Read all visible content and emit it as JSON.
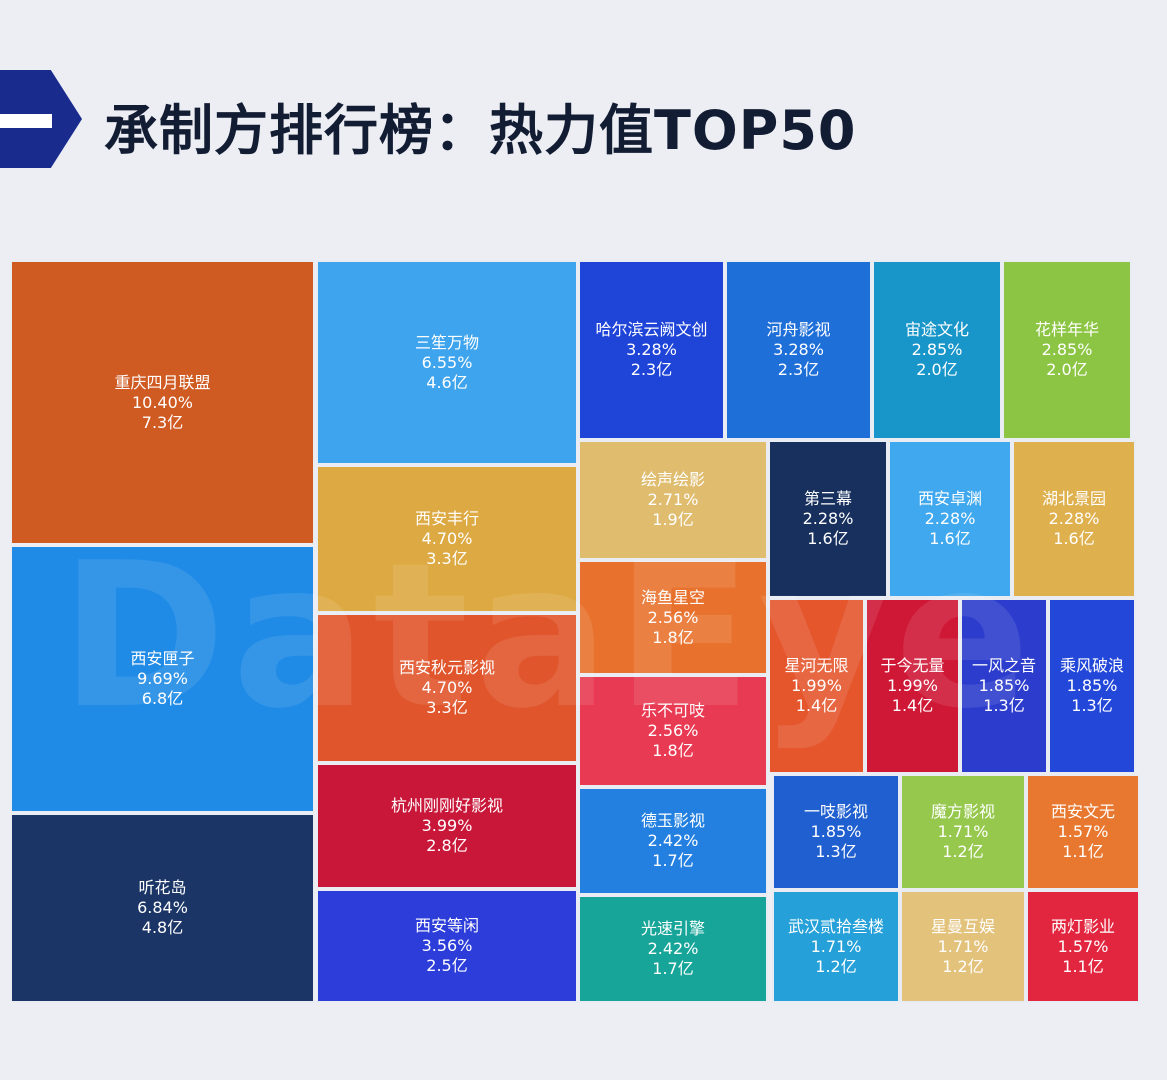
{
  "header": {
    "title": "承制方排行榜：热力值TOP50"
  },
  "watermark": "DataEye",
  "chart_data": {
    "type": "treemap",
    "title": "承制方排行榜：热力值TOP50",
    "items": [
      {
        "name": "重庆四月联盟",
        "share": "10.40%",
        "value": "7.3亿",
        "v": 7.3,
        "color": "#cf5a22"
      },
      {
        "name": "西安匣子",
        "share": "9.69%",
        "value": "6.8亿",
        "v": 6.8,
        "color": "#1f8be6"
      },
      {
        "name": "听花岛",
        "share": "6.84%",
        "value": "4.8亿",
        "v": 4.8,
        "color": "#1a3566"
      },
      {
        "name": "三笙万物",
        "share": "6.55%",
        "value": "4.6亿",
        "v": 4.6,
        "color": "#3fa4ee"
      },
      {
        "name": "西安丰行",
        "share": "4.70%",
        "value": "3.3亿",
        "v": 3.3,
        "color": "#dda942"
      },
      {
        "name": "西安秋元影视",
        "share": "4.70%",
        "value": "3.3亿",
        "v": 3.3,
        "color": "#e0552b"
      },
      {
        "name": "杭州刚刚好影视",
        "share": "3.99%",
        "value": "2.8亿",
        "v": 2.8,
        "color": "#c9173a"
      },
      {
        "name": "西安等闲",
        "share": "3.56%",
        "value": "2.5亿",
        "v": 2.5,
        "color": "#2c3dd9"
      },
      {
        "name": "哈尔滨云阙文创",
        "share": "3.28%",
        "value": "2.3亿",
        "v": 2.3,
        "color": "#1f44d8"
      },
      {
        "name": "河舟影视",
        "share": "3.28%",
        "value": "2.3亿",
        "v": 2.3,
        "color": "#1f6fd9"
      },
      {
        "name": "宙途文化",
        "share": "2.85%",
        "value": "2.0亿",
        "v": 2.0,
        "color": "#1996c9"
      },
      {
        "name": "花样年华",
        "share": "2.85%",
        "value": "2.0亿",
        "v": 2.0,
        "color": "#8cc543"
      },
      {
        "name": "绘声绘影",
        "share": "2.71%",
        "value": "1.9亿",
        "v": 1.9,
        "color": "#dfbc6e"
      },
      {
        "name": "海鱼星空",
        "share": "2.56%",
        "value": "1.8亿",
        "v": 1.8,
        "color": "#e8722d"
      },
      {
        "name": "乐不可吱",
        "share": "2.56%",
        "value": "1.8亿",
        "v": 1.8,
        "color": "#e83a52"
      },
      {
        "name": "德玉影视",
        "share": "2.42%",
        "value": "1.7亿",
        "v": 1.7,
        "color": "#2380e0"
      },
      {
        "name": "光速引擎",
        "share": "2.42%",
        "value": "1.7亿",
        "v": 1.7,
        "color": "#16a598"
      },
      {
        "name": "第三幕",
        "share": "2.28%",
        "value": "1.6亿",
        "v": 1.6,
        "color": "#17305e"
      },
      {
        "name": "西安卓渊",
        "share": "2.28%",
        "value": "1.6亿",
        "v": 1.6,
        "color": "#3fa8ee"
      },
      {
        "name": "湖北景园",
        "share": "2.28%",
        "value": "1.6亿",
        "v": 1.6,
        "color": "#dfb04e"
      },
      {
        "name": "星河无限",
        "share": "1.99%",
        "value": "1.4亿",
        "v": 1.4,
        "color": "#e5562d"
      },
      {
        "name": "于今无量",
        "share": "1.99%",
        "value": "1.4亿",
        "v": 1.4,
        "color": "#cf1736"
      },
      {
        "name": "一风之音",
        "share": "1.85%",
        "value": "1.3亿",
        "v": 1.3,
        "color": "#2c3ccc"
      },
      {
        "name": "乘风破浪",
        "share": "1.85%",
        "value": "1.3亿",
        "v": 1.3,
        "color": "#2247d9"
      },
      {
        "name": "一吱影视",
        "share": "1.85%",
        "value": "1.3亿",
        "v": 1.3,
        "color": "#1f5fcf"
      },
      {
        "name": "魔方影视",
        "share": "1.71%",
        "value": "1.2亿",
        "v": 1.2,
        "color": "#95c84c"
      },
      {
        "name": "西安文无",
        "share": "1.57%",
        "value": "1.1亿",
        "v": 1.1,
        "color": "#e8782f"
      },
      {
        "name": "武汉贰拾叁楼",
        "share": "1.71%",
        "value": "1.2亿",
        "v": 1.2,
        "color": "#25a0d8"
      },
      {
        "name": "星曼互娱",
        "share": "1.71%",
        "value": "1.2亿",
        "v": 1.2,
        "color": "#e3c27c"
      },
      {
        "name": "两灯影业",
        "share": "1.57%",
        "value": "1.1亿",
        "v": 1.1,
        "color": "#e3263f"
      }
    ]
  }
}
